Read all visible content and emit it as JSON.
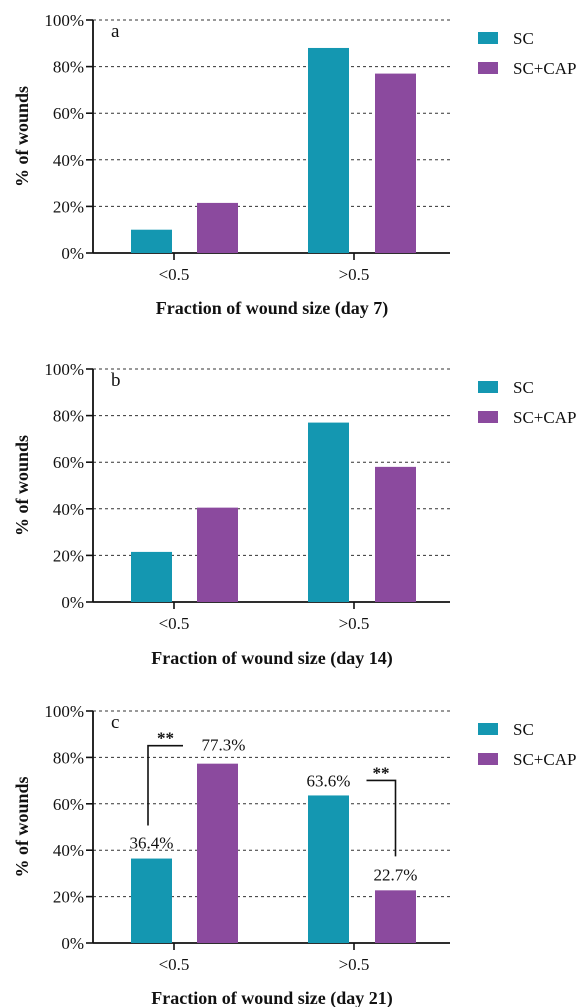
{
  "chart_data": [
    {
      "type": "bar",
      "panel_label": "a",
      "categories": [
        "<0.5",
        ">0.5"
      ],
      "series": [
        {
          "name": "SC",
          "values": [
            10,
            88
          ]
        },
        {
          "name": "SC+CAP",
          "values": [
            21.5,
            77
          ]
        }
      ],
      "xlabel": "Fraction of wound size (day 7)",
      "ylabel": "% of wounds",
      "ylim": [
        0,
        100
      ],
      "yticks": [
        "0%",
        "20%",
        "40%",
        "60%",
        "80%",
        "100%"
      ],
      "grid": "dashed horizontal",
      "legend": "top-right"
    },
    {
      "type": "bar",
      "panel_label": "b",
      "categories": [
        "<0.5",
        ">0.5"
      ],
      "series": [
        {
          "name": "SC",
          "values": [
            21.5,
            77
          ]
        },
        {
          "name": "SC+CAP",
          "values": [
            40.5,
            58
          ]
        }
      ],
      "xlabel": "Fraction of wound size (day 14)",
      "ylabel": "% of wounds",
      "ylim": [
        0,
        100
      ],
      "yticks": [
        "0%",
        "20%",
        "40%",
        "60%",
        "80%",
        "100%"
      ],
      "grid": "dashed horizontal",
      "legend": "top-right"
    },
    {
      "type": "bar",
      "panel_label": "c",
      "categories": [
        "<0.5",
        ">0.5"
      ],
      "series": [
        {
          "name": "SC",
          "values": [
            36.4,
            63.6
          ],
          "data_labels": [
            "36.4%",
            "63.6%"
          ]
        },
        {
          "name": "SC+CAP",
          "values": [
            77.3,
            22.7
          ],
          "data_labels": [
            "77.3%",
            "22.7%"
          ]
        }
      ],
      "annotations": [
        {
          "text": "**",
          "category": "<0.5"
        },
        {
          "text": "**",
          "category": ">0.5"
        }
      ],
      "xlabel": "Fraction of wound size (day 21)",
      "ylabel": "% of wounds",
      "ylim": [
        0,
        100
      ],
      "yticks": [
        "0%",
        "20%",
        "40%",
        "60%",
        "80%",
        "100%"
      ],
      "grid": "dashed horizontal",
      "legend": "top-right"
    }
  ],
  "colors": {
    "SC": "#1497b1",
    "SC+CAP": "#8b4a9e",
    "axis": "#111111",
    "grid": "#333333"
  }
}
